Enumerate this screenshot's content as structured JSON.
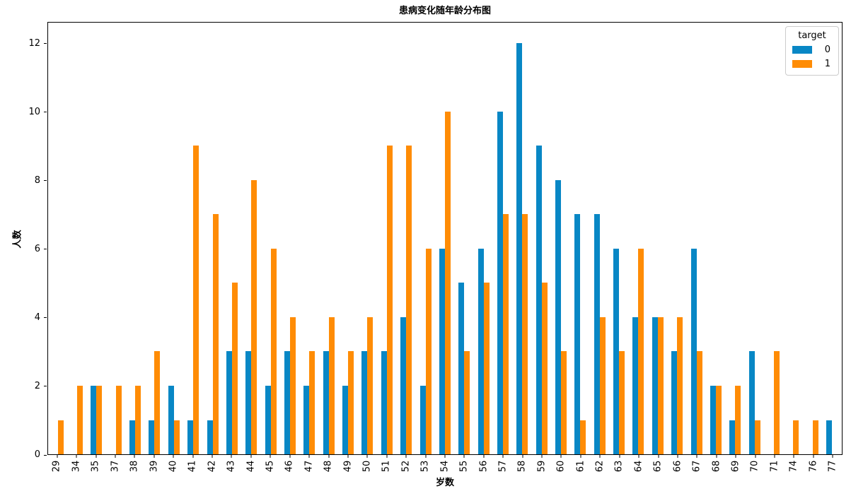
{
  "chart_data": {
    "type": "bar",
    "title": "患病变化随年龄分布图",
    "xlabel": "岁数",
    "ylabel": "人数",
    "categories": [
      "29",
      "34",
      "35",
      "37",
      "38",
      "39",
      "40",
      "41",
      "42",
      "43",
      "44",
      "45",
      "46",
      "47",
      "48",
      "49",
      "50",
      "51",
      "52",
      "53",
      "54",
      "55",
      "56",
      "57",
      "58",
      "59",
      "60",
      "61",
      "62",
      "63",
      "64",
      "65",
      "66",
      "67",
      "68",
      "69",
      "70",
      "71",
      "74",
      "76",
      "77"
    ],
    "series": [
      {
        "name": "0",
        "color": "#0887c5",
        "values": [
          0,
          0,
          2,
          0,
          1,
          1,
          2,
          1,
          1,
          3,
          3,
          2,
          3,
          2,
          3,
          2,
          3,
          3,
          4,
          2,
          6,
          5,
          6,
          10,
          12,
          9,
          8,
          7,
          7,
          6,
          4,
          4,
          3,
          6,
          2,
          1,
          3,
          0,
          0,
          0,
          1
        ]
      },
      {
        "name": "1",
        "color": "#ff8c05",
        "values": [
          1,
          2,
          2,
          2,
          2,
          3,
          1,
          9,
          7,
          5,
          8,
          6,
          4,
          3,
          4,
          3,
          4,
          9,
          9,
          6,
          10,
          3,
          5,
          7,
          7,
          5,
          3,
          1,
          4,
          3,
          6,
          4,
          4,
          3,
          2,
          2,
          1,
          3,
          1,
          1,
          0
        ]
      }
    ],
    "yticks": [
      0,
      2,
      4,
      6,
      8,
      10,
      12
    ],
    "ylim": [
      0,
      12.63
    ],
    "grid": false,
    "legend": {
      "title": "target",
      "position": "upper right",
      "entries": [
        {
          "label": "0",
          "color": "#0887c5"
        },
        {
          "label": "1",
          "color": "#ff8c05"
        }
      ]
    }
  }
}
